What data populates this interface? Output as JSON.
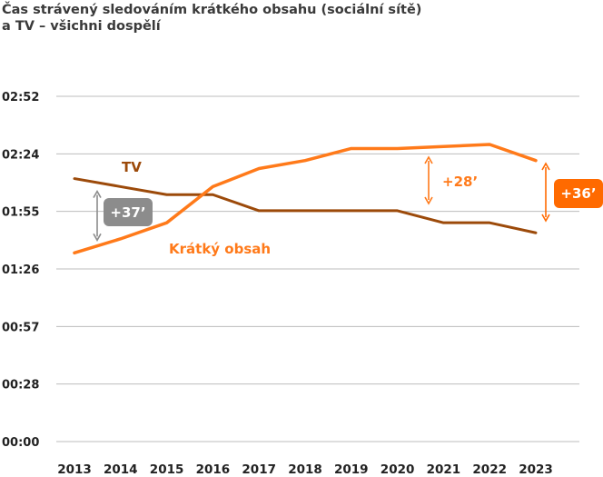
{
  "chart_data": {
    "type": "line",
    "title_line1": "Čas strávený sledováním krátkého obsahu (sociální sítě)",
    "title_line2": "a TV – všichni dospělí",
    "x": [
      "2013",
      "2014",
      "2015",
      "2016",
      "2017",
      "2018",
      "2019",
      "2020",
      "2021",
      "2022",
      "2023"
    ],
    "y_ticks": [
      "00:00",
      "00:28",
      "00:57",
      "01:26",
      "01:55",
      "02:24",
      "02:52"
    ],
    "ylim": [
      0,
      172
    ],
    "grid": true,
    "series": [
      {
        "name": "TV",
        "color": "#9c4a0a",
        "values": [
          131,
          127,
          123,
          123,
          115,
          115,
          115,
          115,
          109,
          109,
          104
        ]
      },
      {
        "name": "Krátký obsah",
        "color": "#ff7a1a",
        "values": [
          94,
          101,
          109,
          127,
          136,
          140,
          146,
          146,
          147,
          148,
          140
        ]
      }
    ],
    "annotations": [
      {
        "label": "+37’",
        "color": "#8c8c8c",
        "x_index": 0,
        "y_from": 131,
        "y_to": 94,
        "style": "badge"
      },
      {
        "label": "+28’",
        "color": "#ff7a1a",
        "x_index": 7.7,
        "y_from": 143,
        "y_to": 117,
        "style": "text"
      },
      {
        "label": "+36’",
        "color": "#ff6a00",
        "x_index": 10.4,
        "y_from": 142,
        "y_to": 109,
        "style": "badge"
      }
    ]
  }
}
